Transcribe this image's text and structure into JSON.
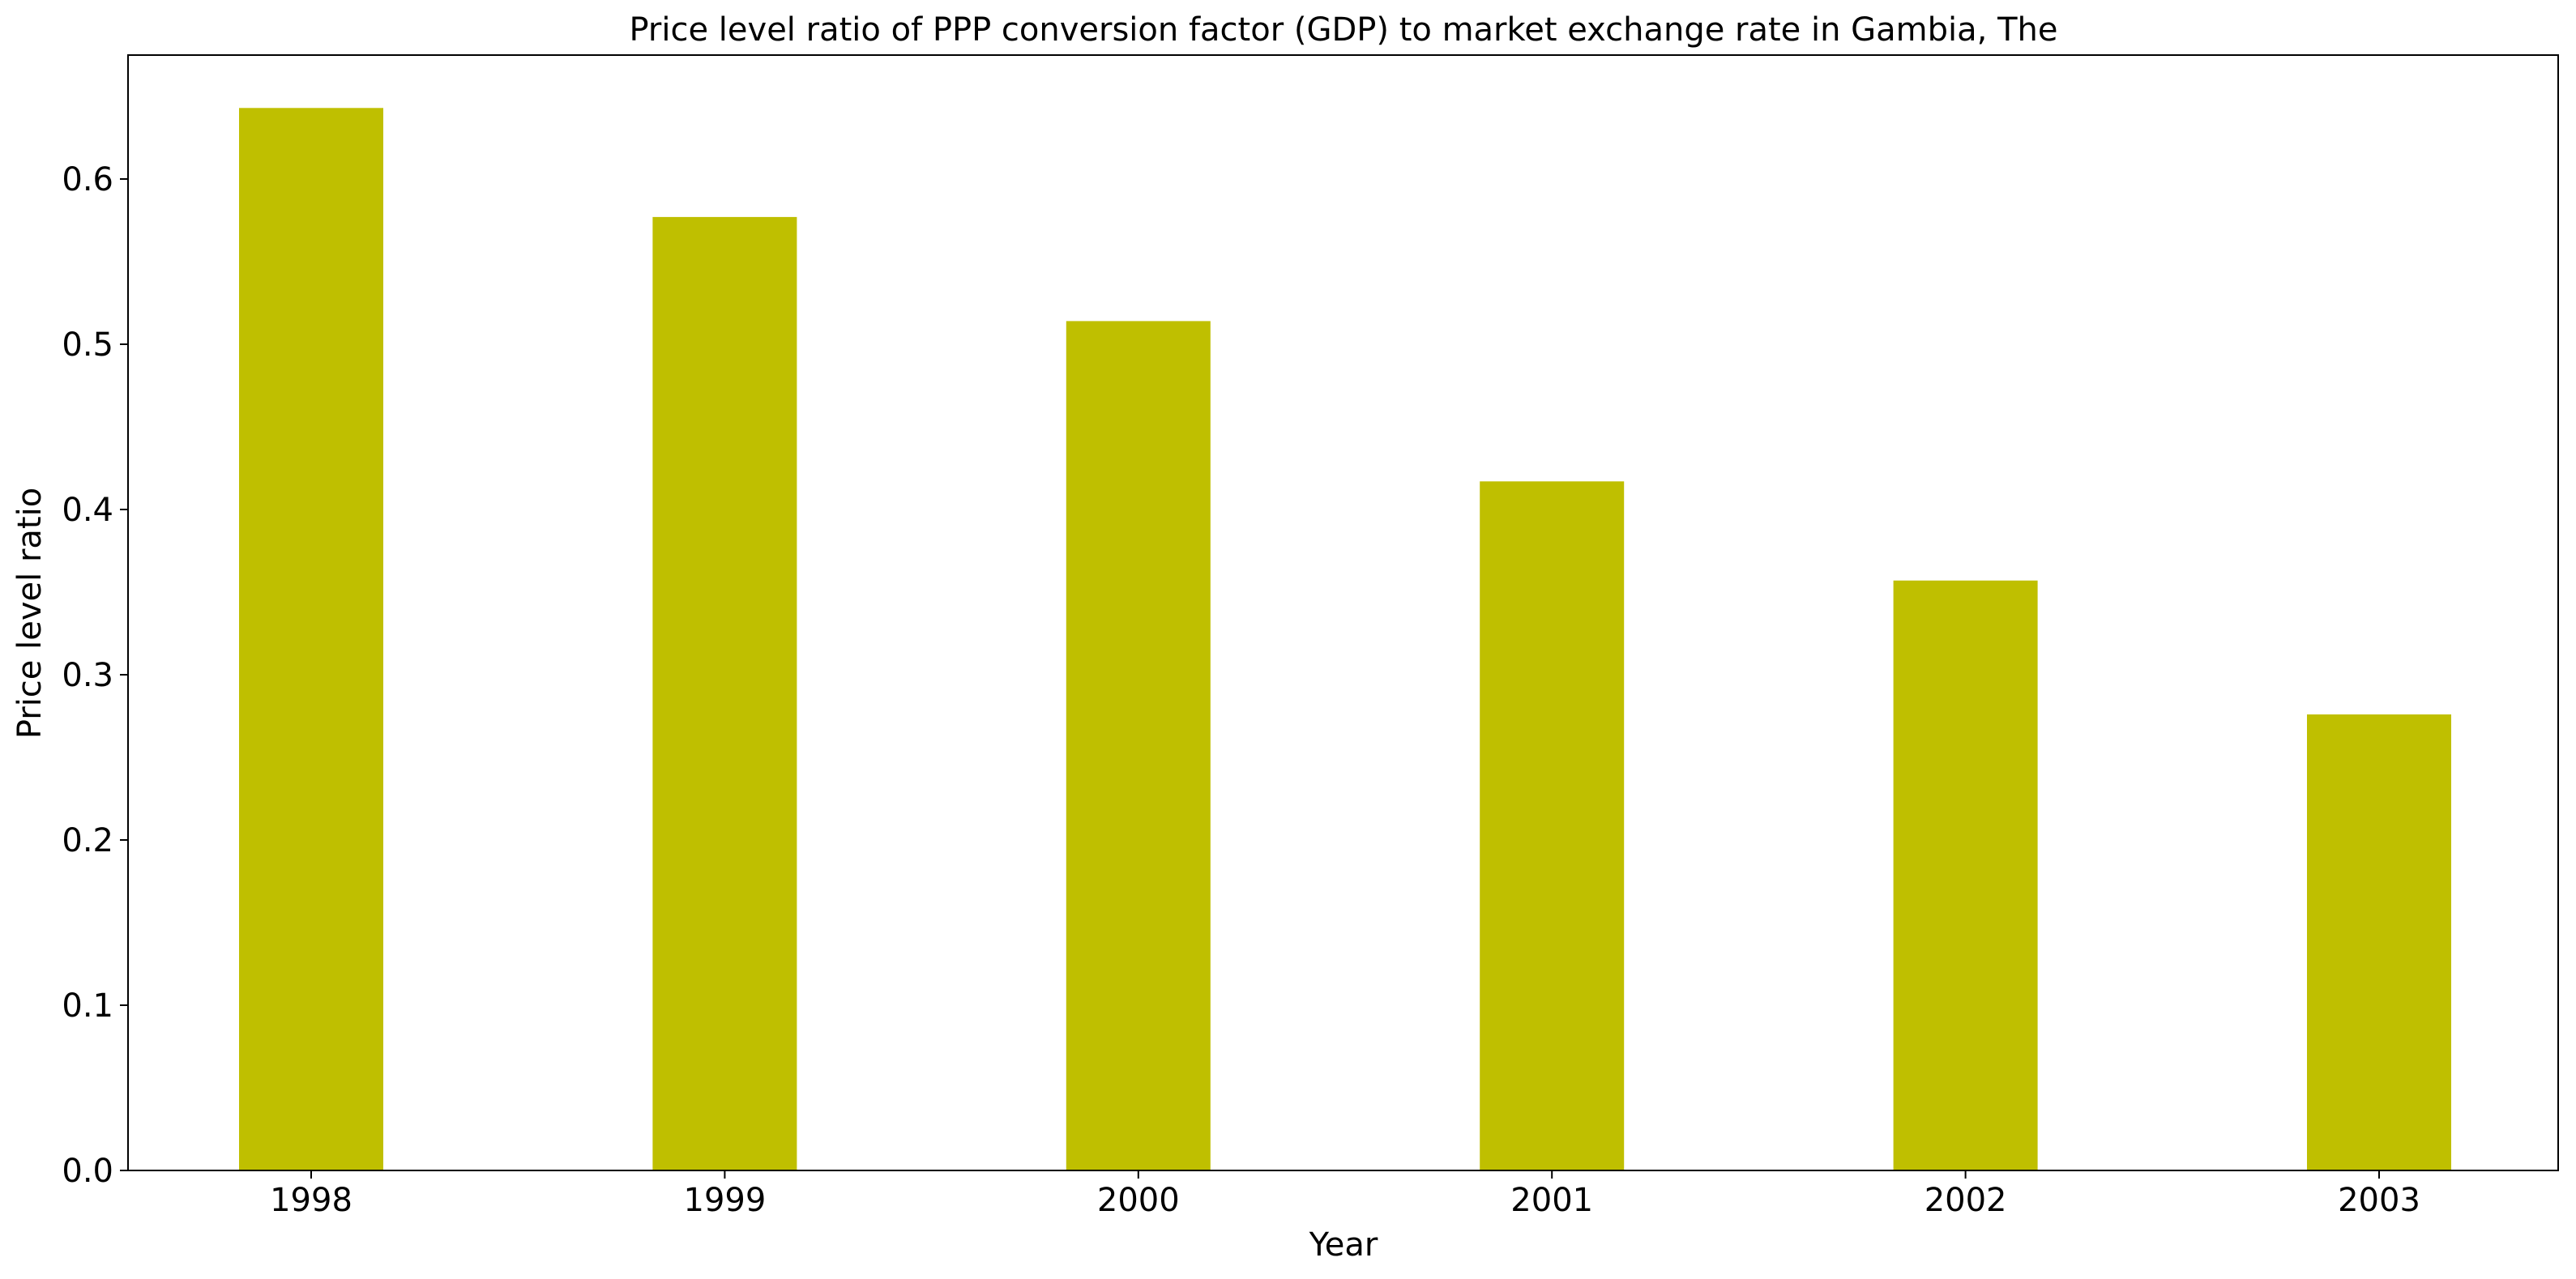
{
  "chart_data": {
    "type": "bar",
    "title": "Price level ratio of PPP conversion factor (GDP) to market exchange rate in Gambia, The",
    "xlabel": "Year",
    "ylabel": "Price level ratio",
    "categories": [
      "1998",
      "1999",
      "2000",
      "2001",
      "2002",
      "2003"
    ],
    "values": [
      0.643,
      0.577,
      0.514,
      0.417,
      0.357,
      0.276
    ],
    "ylim": [
      0,
      0.675
    ],
    "yticks": [
      "0.0",
      "0.1",
      "0.2",
      "0.3",
      "0.4",
      "0.5",
      "0.6"
    ],
    "bar_color": "#bfbf00",
    "grid": false,
    "legend": "none"
  }
}
